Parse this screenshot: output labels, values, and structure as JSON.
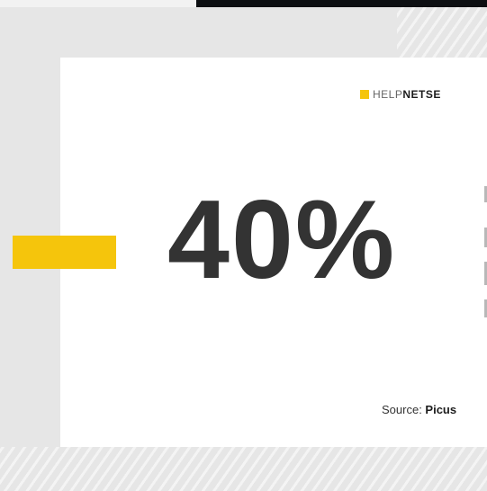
{
  "logo": {
    "help": "HELP",
    "net": "NET",
    "se": "SE"
  },
  "stat": {
    "value": "40%"
  },
  "source": {
    "prefix": "Source: ",
    "name": "Picus"
  },
  "colors": {
    "accent": "#f5c50c",
    "text": "#333333",
    "frame": "#e6e6e6",
    "card": "#ffffff",
    "topbar": "#0d0f12"
  },
  "icons": {
    "logo_mark": "yellow-square-icon"
  }
}
